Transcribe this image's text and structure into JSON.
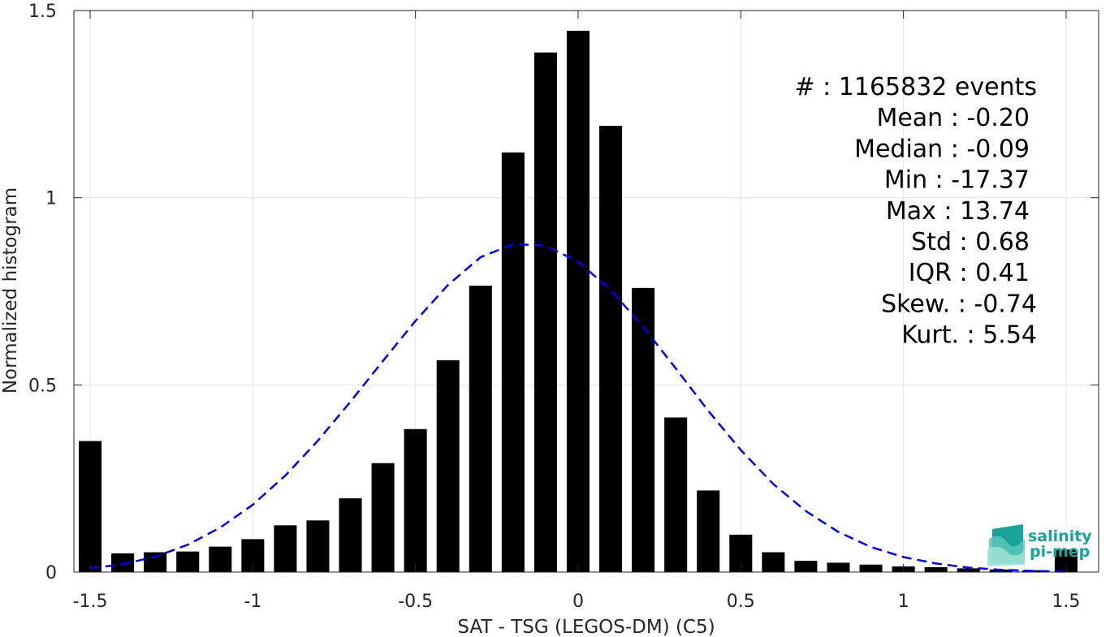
{
  "chart_data": {
    "type": "bar",
    "xlabel": "SAT - TSG (LEGOS-DM) (C5)",
    "ylabel": "Normalized histogram",
    "xlim": [
      -1.55,
      1.6
    ],
    "ylim": [
      0,
      1.5
    ],
    "x_ticks": [
      -1.5,
      -1,
      -0.5,
      0,
      0.5,
      1,
      1.5
    ],
    "x_tick_labels": [
      "-1.5",
      "-1",
      "-0.5",
      "0",
      "0.5",
      "1",
      "1.5"
    ],
    "y_ticks": [
      0,
      0.5,
      1,
      1.5
    ],
    "y_tick_labels": [
      "0",
      "0.5",
      "1",
      "1.5"
    ],
    "grid": true,
    "bar_color": "#000000",
    "fit_color": "#0000ee",
    "series": [
      {
        "type": "bar",
        "x": [
          -1.5,
          -1.4,
          -1.3,
          -1.2,
          -1.1,
          -1.0,
          -0.9,
          -0.8,
          -0.7,
          -0.6,
          -0.5,
          -0.4,
          -0.3,
          -0.2,
          -0.1,
          0.0,
          0.1,
          0.2,
          0.3,
          0.4,
          0.5,
          0.6,
          0.7,
          0.8,
          0.9,
          1.0,
          1.1,
          1.2,
          1.3,
          1.4,
          1.5
        ],
        "values": [
          0.35,
          0.05,
          0.053,
          0.055,
          0.068,
          0.088,
          0.125,
          0.138,
          0.197,
          0.291,
          0.382,
          0.566,
          0.765,
          1.121,
          1.388,
          1.446,
          1.192,
          0.759,
          0.413,
          0.218,
          0.1,
          0.053,
          0.03,
          0.025,
          0.02,
          0.015,
          0.013,
          0.01,
          0.007,
          0.005,
          0.06
        ]
      },
      {
        "type": "line",
        "style": "dashed",
        "x": [
          -1.5,
          -1.4,
          -1.3,
          -1.2,
          -1.1,
          -1.0,
          -0.9,
          -0.8,
          -0.7,
          -0.6,
          -0.5,
          -0.4,
          -0.3,
          -0.2,
          -0.1,
          0.0,
          0.1,
          0.2,
          0.3,
          0.4,
          0.5,
          0.6,
          0.7,
          0.8,
          0.9,
          1.0,
          1.1,
          1.2,
          1.3,
          1.4,
          1.5
        ],
        "values": [
          0.01,
          0.021,
          0.041,
          0.073,
          0.119,
          0.18,
          0.258,
          0.351,
          0.455,
          0.564,
          0.671,
          0.767,
          0.841,
          0.876,
          0.872,
          0.829,
          0.754,
          0.655,
          0.544,
          0.431,
          0.326,
          0.235,
          0.163,
          0.107,
          0.067,
          0.04,
          0.023,
          0.012,
          0.006,
          0.003,
          0.001
        ]
      }
    ],
    "annotations": [
      {
        "label": "#  ",
        "value": "1165832 events"
      },
      {
        "label": "Mean ",
        "value": "-0.20"
      },
      {
        "label": "Median ",
        "value": "-0.09"
      },
      {
        "label": "Min ",
        "value": "-17.37"
      },
      {
        "label": "Max ",
        "value": "13.74"
      },
      {
        "label": "Std ",
        "value": "0.68"
      },
      {
        "label": "IQR ",
        "value": "0.41"
      },
      {
        "label": "Skew. ",
        "value": "-0.74"
      },
      {
        "label": "Kurt. ",
        "value": "5.54"
      }
    ]
  },
  "logo": {
    "line1": "salinity",
    "line2": "pi-mep",
    "icon": "wave-icon",
    "color": "#1aa396"
  }
}
